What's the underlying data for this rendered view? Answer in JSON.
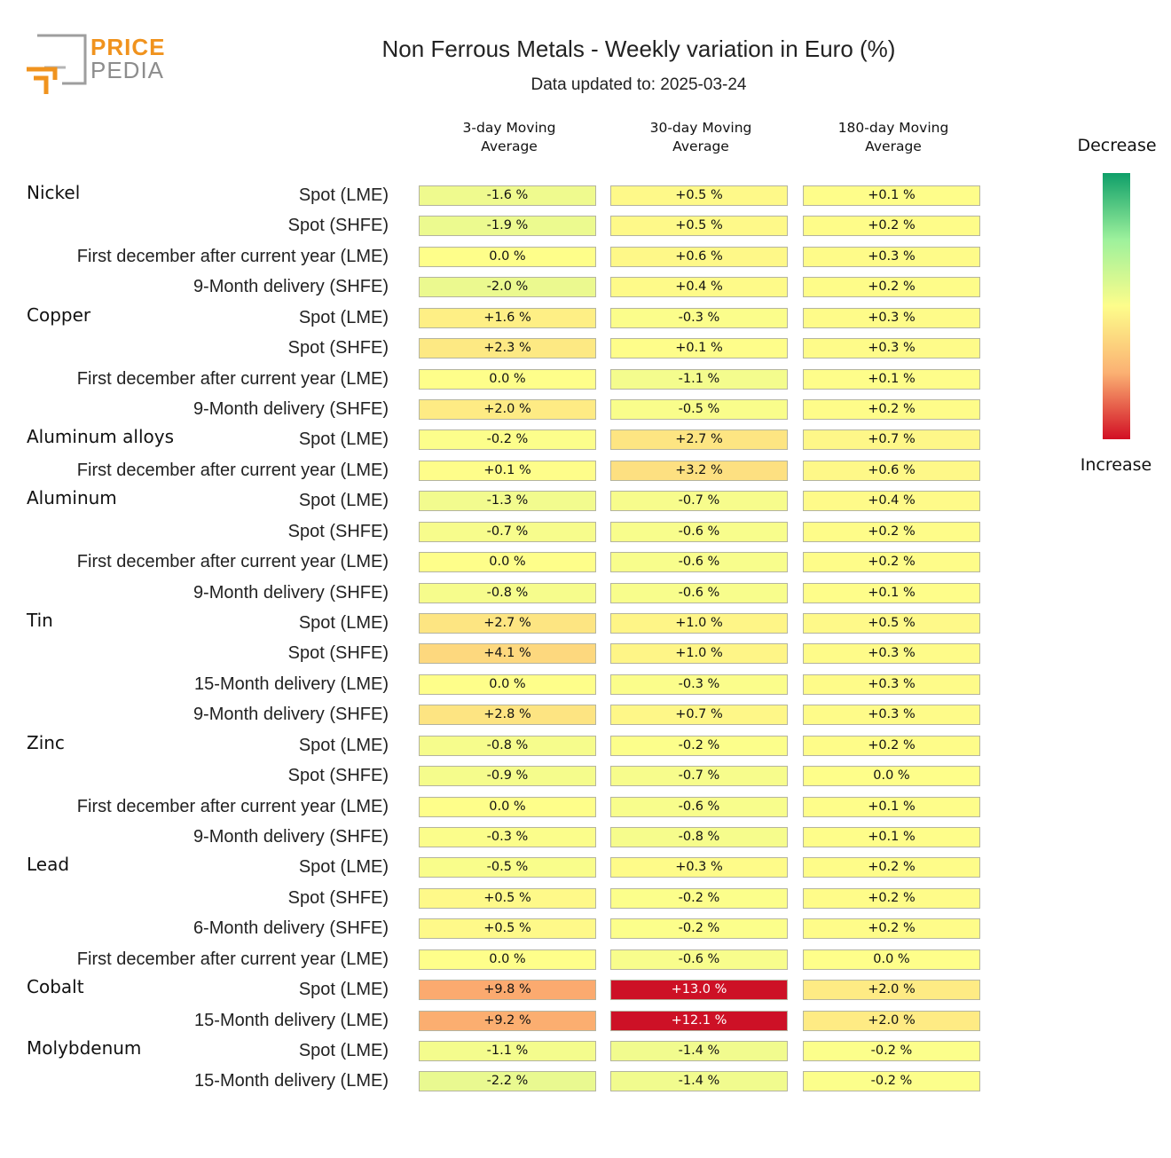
{
  "logo": {
    "word1": "PRICE",
    "word2": "PEDIA"
  },
  "title": "Non Ferrous Metals - Weekly variation in Euro (%)",
  "subtitle": "Data updated to: 2025-03-24",
  "legend": {
    "top_label": "Decrease",
    "bottom_label": "Increase",
    "colors": [
      "#0f9f69",
      "#9df19c",
      "#fdfd8b",
      "#fbb173",
      "#d20f24"
    ]
  },
  "colors": {
    "cell_low": "#e9f990",
    "cell_neutral": "#fefe8a",
    "cell_mid": "#fdd47d",
    "cell_high": "#fba86e",
    "cell_max": "#cd1126"
  },
  "chart_data": {
    "type": "table",
    "title": "Non Ferrous Metals - Weekly variation in Euro (%)",
    "columns": [
      "3-day Moving Average",
      "30-day Moving Average",
      "180-day Moving Average"
    ],
    "unit": "%",
    "groups": [
      {
        "name": "Nickel",
        "rows": [
          {
            "label": "Spot (LME)",
            "values": [
              "-1.6 %",
              "+0.5 %",
              "+0.1 %"
            ]
          },
          {
            "label": "Spot (SHFE)",
            "values": [
              "-1.9 %",
              "+0.5 %",
              "+0.2 %"
            ]
          },
          {
            "label": "First december after current year (LME)",
            "values": [
              "0.0 %",
              "+0.6 %",
              "+0.3 %"
            ]
          },
          {
            "label": "9-Month delivery (SHFE)",
            "values": [
              "-2.0 %",
              "+0.4 %",
              "+0.2 %"
            ]
          }
        ]
      },
      {
        "name": "Copper",
        "rows": [
          {
            "label": "Spot (LME)",
            "values": [
              "+1.6 %",
              "-0.3 %",
              "+0.3 %"
            ]
          },
          {
            "label": "Spot (SHFE)",
            "values": [
              "+2.3 %",
              "+0.1 %",
              "+0.3 %"
            ]
          },
          {
            "label": "First december after current year (LME)",
            "values": [
              "0.0 %",
              "-1.1 %",
              "+0.1 %"
            ]
          },
          {
            "label": "9-Month delivery (SHFE)",
            "values": [
              "+2.0 %",
              "-0.5 %",
              "+0.2 %"
            ]
          }
        ]
      },
      {
        "name": "Aluminum alloys",
        "rows": [
          {
            "label": "Spot (LME)",
            "values": [
              "-0.2 %",
              "+2.7 %",
              "+0.7 %"
            ]
          },
          {
            "label": "First december after current year (LME)",
            "values": [
              "+0.1 %",
              "+3.2 %",
              "+0.6 %"
            ]
          }
        ]
      },
      {
        "name": "Aluminum",
        "rows": [
          {
            "label": "Spot (LME)",
            "values": [
              "-1.3 %",
              "-0.7 %",
              "+0.4 %"
            ]
          },
          {
            "label": "Spot (SHFE)",
            "values": [
              "-0.7 %",
              "-0.6 %",
              "+0.2 %"
            ]
          },
          {
            "label": "First december after current year (LME)",
            "values": [
              "0.0 %",
              "-0.6 %",
              "+0.2 %"
            ]
          },
          {
            "label": "9-Month delivery (SHFE)",
            "values": [
              "-0.8 %",
              "-0.6 %",
              "+0.1 %"
            ]
          }
        ]
      },
      {
        "name": "Tin",
        "rows": [
          {
            "label": "Spot (LME)",
            "values": [
              "+2.7 %",
              "+1.0 %",
              "+0.5 %"
            ]
          },
          {
            "label": "Spot (SHFE)",
            "values": [
              "+4.1 %",
              "+1.0 %",
              "+0.3 %"
            ]
          },
          {
            "label": "15-Month delivery (LME)",
            "values": [
              "0.0 %",
              "-0.3 %",
              "+0.3 %"
            ]
          },
          {
            "label": "9-Month delivery (SHFE)",
            "values": [
              "+2.8 %",
              "+0.7 %",
              "+0.3 %"
            ]
          }
        ]
      },
      {
        "name": "Zinc",
        "rows": [
          {
            "label": "Spot (LME)",
            "values": [
              "-0.8 %",
              "-0.2 %",
              "+0.2 %"
            ]
          },
          {
            "label": "Spot (SHFE)",
            "values": [
              "-0.9 %",
              "-0.7 %",
              "0.0 %"
            ]
          },
          {
            "label": "First december after current year (LME)",
            "values": [
              "0.0 %",
              "-0.6 %",
              "+0.1 %"
            ]
          },
          {
            "label": "9-Month delivery (SHFE)",
            "values": [
              "-0.3 %",
              "-0.8 %",
              "+0.1 %"
            ]
          }
        ]
      },
      {
        "name": "Lead",
        "rows": [
          {
            "label": "Spot (LME)",
            "values": [
              "-0.5 %",
              "+0.3 %",
              "+0.2 %"
            ]
          },
          {
            "label": "Spot (SHFE)",
            "values": [
              "+0.5 %",
              "-0.2 %",
              "+0.2 %"
            ]
          },
          {
            "label": "6-Month delivery (SHFE)",
            "values": [
              "+0.5 %",
              "-0.2 %",
              "+0.2 %"
            ]
          },
          {
            "label": "First december after current year (LME)",
            "values": [
              "0.0 %",
              "-0.6 %",
              "0.0 %"
            ]
          }
        ]
      },
      {
        "name": "Cobalt",
        "rows": [
          {
            "label": "Spot (LME)",
            "values": [
              "+9.8 %",
              "+13.0 %",
              "+2.0 %"
            ]
          },
          {
            "label": "15-Month delivery (LME)",
            "values": [
              "+9.2 %",
              "+12.1 %",
              "+2.0 %"
            ]
          }
        ]
      },
      {
        "name": "Molybdenum",
        "rows": [
          {
            "label": "Spot (LME)",
            "values": [
              "-1.1 %",
              "-1.4 %",
              "-0.2 %"
            ]
          },
          {
            "label": "15-Month delivery (LME)",
            "values": [
              "-2.2 %",
              "-1.4 %",
              "-0.2 %"
            ]
          }
        ]
      }
    ]
  }
}
